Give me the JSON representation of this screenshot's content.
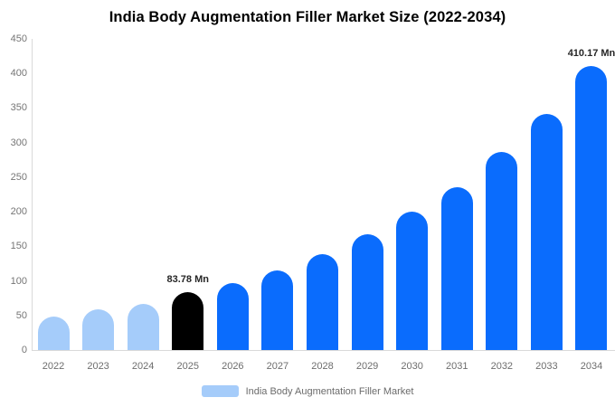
{
  "title": "India Body Augmentation Filler Market Size (2022-2034)",
  "colors": {
    "historical": "#a5ccfa",
    "base_year": "#000000",
    "forecast": "#0a6cfd",
    "axis_line": "#d9d9d9",
    "tick_text": "#757575",
    "annotation_text": "#262626",
    "legend_text": "#6b6b6b",
    "background": "#ffffff"
  },
  "legend": {
    "label": "India Body Augmentation Filler Market",
    "swatch_color": "#a5ccfa"
  },
  "chart_data": {
    "type": "bar",
    "title": "India Body Augmentation Filler Market Size (2022-2034)",
    "categories": [
      "2022",
      "2023",
      "2024",
      "2025",
      "2026",
      "2027",
      "2028",
      "2029",
      "2030",
      "2031",
      "2032",
      "2033",
      "2034"
    ],
    "values": [
      49,
      59,
      67,
      83.78,
      97,
      115,
      139,
      167,
      200,
      236,
      286,
      342,
      410.17
    ],
    "unit": "Mn",
    "xlabel": "",
    "ylabel": "",
    "ylim": [
      0,
      450
    ],
    "yticks": [
      0,
      50,
      100,
      150,
      200,
      250,
      300,
      350,
      400,
      450
    ],
    "grid": false,
    "legend_position": "bottom",
    "bar_color_keys": [
      "historical",
      "historical",
      "historical",
      "base_year",
      "forecast",
      "forecast",
      "forecast",
      "forecast",
      "forecast",
      "forecast",
      "forecast",
      "forecast",
      "forecast"
    ],
    "annotations": [
      {
        "category": "2025",
        "text": "83.78 Mn"
      },
      {
        "category": "2034",
        "text": "410.17 Mn"
      }
    ]
  }
}
